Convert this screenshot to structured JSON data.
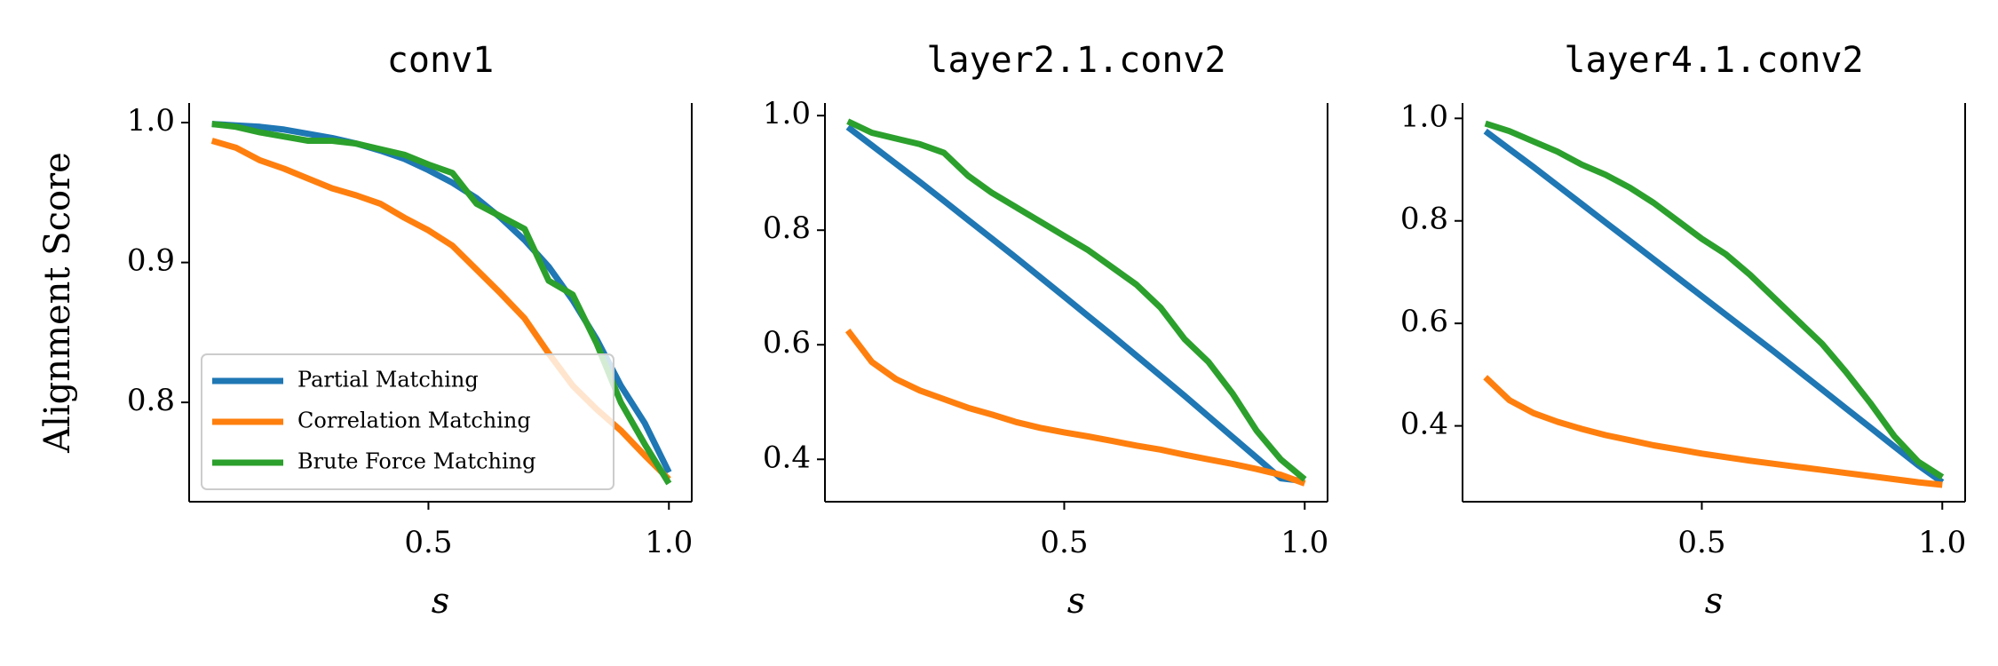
{
  "chart_data": [
    {
      "type": "line",
      "title": "conv1",
      "xlabel": "s",
      "ylabel": "Alignment Score",
      "x": [
        0.05,
        0.1,
        0.15,
        0.2,
        0.25,
        0.3,
        0.35,
        0.4,
        0.45,
        0.5,
        0.55,
        0.6,
        0.65,
        0.7,
        0.75,
        0.8,
        0.85,
        0.9,
        0.95,
        1
      ],
      "series": [
        {
          "name": "Partial Matching",
          "color": "#1f77b4",
          "values": [
            0.999,
            0.998,
            0.997,
            0.995,
            0.992,
            0.989,
            0.985,
            0.98,
            0.974,
            0.966,
            0.957,
            0.946,
            0.932,
            0.916,
            0.897,
            0.873,
            0.845,
            0.812,
            0.785,
            0.75
          ]
        },
        {
          "name": "Correlation Matching",
          "color": "#ff7f0e",
          "values": [
            0.987,
            0.982,
            0.973,
            0.967,
            0.96,
            0.953,
            0.948,
            0.942,
            0.932,
            0.923,
            0.912,
            0.895,
            0.878,
            0.86,
            0.835,
            0.812,
            0.795,
            0.78,
            0.762,
            0.745
          ]
        },
        {
          "name": "Brute Force Matching",
          "color": "#2ca02c",
          "values": [
            0.999,
            0.997,
            0.993,
            0.99,
            0.987,
            0.987,
            0.985,
            0.981,
            0.977,
            0.97,
            0.964,
            0.942,
            0.933,
            0.924,
            0.887,
            0.877,
            0.842,
            0.8,
            0.77,
            0.742
          ]
        }
      ],
      "xlim": [
        0.0025,
        1.0475
      ],
      "ylim": [
        0.729,
        1.014
      ],
      "xticks": [
        0.5,
        {
          "value": 1,
          "label": "1.0"
        }
      ],
      "yticks": [
        {
          "value": 1,
          "label": "1.0"
        },
        0.9,
        0.8
      ],
      "legend": "lower left"
    },
    {
      "type": "line",
      "title": "layer2.1.conv2",
      "xlabel": "s",
      "x": [
        0.05,
        0.1,
        0.15,
        0.2,
        0.25,
        0.3,
        0.35,
        0.4,
        0.45,
        0.5,
        0.55,
        0.6,
        0.65,
        0.7,
        0.75,
        0.8,
        0.85,
        0.9,
        0.95,
        1
      ],
      "series": [
        {
          "color": "#1f77b4",
          "values": [
            0.98,
            0.948,
            0.916,
            0.884,
            0.851,
            0.818,
            0.785,
            0.752,
            0.718,
            0.684,
            0.65,
            0.616,
            0.581,
            0.546,
            0.511,
            0.475,
            0.439,
            0.403,
            0.367,
            0.362
          ]
        },
        {
          "color": "#ff7f0e",
          "values": [
            0.625,
            0.57,
            0.54,
            0.52,
            0.505,
            0.49,
            0.478,
            0.465,
            0.455,
            0.447,
            0.44,
            0.432,
            0.424,
            0.417,
            0.408,
            0.4,
            0.392,
            0.383,
            0.373,
            0.358
          ]
        },
        {
          "color": "#2ca02c",
          "values": [
            0.99,
            0.97,
            0.96,
            0.95,
            0.935,
            0.895,
            0.865,
            0.84,
            0.815,
            0.79,
            0.765,
            0.735,
            0.705,
            0.665,
            0.61,
            0.57,
            0.515,
            0.45,
            0.4,
            0.365
          ]
        }
      ],
      "xlim": [
        0.0025,
        1.0475
      ],
      "ylim": [
        0.326,
        1.022
      ],
      "xticks": [
        0.5,
        {
          "value": 1,
          "label": "1.0"
        }
      ],
      "yticks": [
        {
          "value": 1,
          "label": "1.0"
        },
        0.8,
        0.6,
        0.4
      ]
    },
    {
      "type": "line",
      "title": "layer4.1.conv2",
      "xlabel": "s",
      "x": [
        0.05,
        0.1,
        0.15,
        0.2,
        0.25,
        0.3,
        0.35,
        0.4,
        0.45,
        0.5,
        0.55,
        0.6,
        0.65,
        0.7,
        0.75,
        0.8,
        0.85,
        0.9,
        0.95,
        1
      ],
      "series": [
        {
          "color": "#1f77b4",
          "values": [
            0.975,
            0.94,
            0.905,
            0.869,
            0.833,
            0.797,
            0.761,
            0.725,
            0.689,
            0.653,
            0.617,
            0.581,
            0.545,
            0.508,
            0.471,
            0.434,
            0.397,
            0.36,
            0.323,
            0.29
          ]
        },
        {
          "color": "#ff7f0e",
          "values": [
            0.495,
            0.45,
            0.425,
            0.408,
            0.394,
            0.382,
            0.372,
            0.362,
            0.354,
            0.346,
            0.339,
            0.332,
            0.326,
            0.32,
            0.314,
            0.308,
            0.302,
            0.296,
            0.29,
            0.285
          ]
        },
        {
          "color": "#2ca02c",
          "values": [
            0.99,
            0.975,
            0.955,
            0.935,
            0.91,
            0.89,
            0.865,
            0.835,
            0.8,
            0.765,
            0.735,
            0.695,
            0.65,
            0.605,
            0.56,
            0.505,
            0.445,
            0.38,
            0.33,
            0.3
          ]
        }
      ],
      "xlim": [
        0.0025,
        1.0475
      ],
      "ylim": [
        0.252,
        1.03
      ],
      "xticks": [
        0.5,
        {
          "value": 1,
          "label": "1.0"
        }
      ],
      "yticks": [
        {
          "value": 1,
          "label": "1.0"
        },
        0.8,
        0.6,
        0.4
      ]
    }
  ]
}
